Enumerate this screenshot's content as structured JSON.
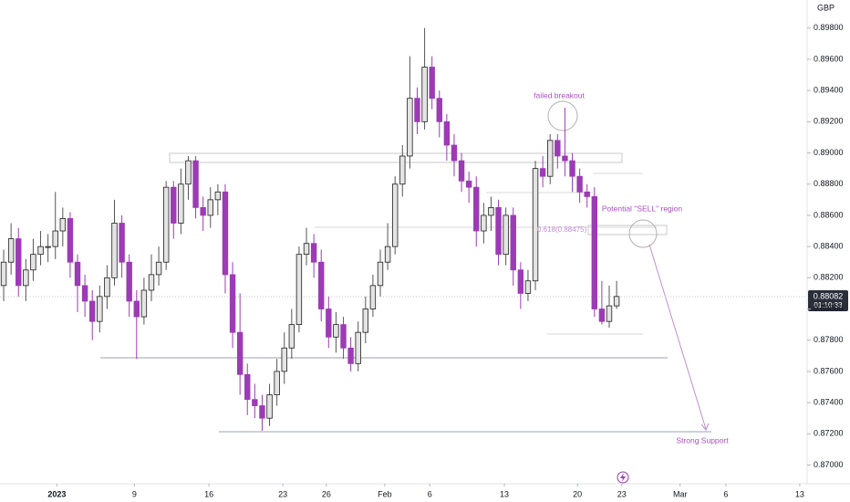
{
  "chart_data": {
    "type": "candlestick",
    "currency": "GBP",
    "last_price_label": "0.88082",
    "countdown": "01:10:33",
    "up_color": "#e4e4e4",
    "down_color": "#9c3bb5",
    "outline_color": "#1e1e1e",
    "open": [
      0.8815,
      0.883,
      0.8845,
      0.8815,
      0.8825,
      0.8835,
      0.884,
      0.884,
      0.885,
      0.8858,
      0.883,
      0.8815,
      0.8805,
      0.8792,
      0.8808,
      0.882,
      0.8855,
      0.883,
      0.8805,
      0.8795,
      0.8812,
      0.8822,
      0.883,
      0.8878,
      0.8855,
      0.888,
      0.8895,
      0.8865,
      0.886,
      0.887,
      0.8875,
      0.8822,
      0.8785,
      0.8758,
      0.8742,
      0.8738,
      0.873,
      0.8745,
      0.876,
      0.8775,
      0.879,
      0.8835,
      0.8842,
      0.883,
      0.88,
      0.8782,
      0.879,
      0.8775,
      0.8765,
      0.8785,
      0.88,
      0.8815,
      0.883,
      0.884,
      0.888,
      0.8898,
      0.8935,
      0.892,
      0.8955,
      0.8935,
      0.892,
      0.8905,
      0.8895,
      0.8882,
      0.8878,
      0.885,
      0.886,
      0.8865,
      0.8835,
      0.886,
      0.8825,
      0.881,
      0.8818,
      0.889,
      0.8885,
      0.8908,
      0.8898,
      0.8895,
      0.8885,
      0.8875,
      0.8872,
      0.88,
      0.8792,
      0.8802
    ],
    "high": [
      0.8838,
      0.8855,
      0.8852,
      0.8832,
      0.8845,
      0.885,
      0.8848,
      0.8875,
      0.8865,
      0.8862,
      0.8835,
      0.8822,
      0.8812,
      0.8815,
      0.8828,
      0.887,
      0.886,
      0.8835,
      0.8812,
      0.882,
      0.8835,
      0.884,
      0.8882,
      0.8882,
      0.889,
      0.8898,
      0.8898,
      0.8872,
      0.8878,
      0.888,
      0.888,
      0.883,
      0.881,
      0.8765,
      0.8752,
      0.8745,
      0.8752,
      0.8768,
      0.8785,
      0.88,
      0.884,
      0.8852,
      0.8848,
      0.8838,
      0.8808,
      0.8798,
      0.8795,
      0.8782,
      0.8792,
      0.8808,
      0.8822,
      0.8838,
      0.8855,
      0.8885,
      0.8905,
      0.8962,
      0.8942,
      0.898,
      0.8962,
      0.894,
      0.8925,
      0.8912,
      0.89,
      0.8888,
      0.8885,
      0.8868,
      0.8872,
      0.887,
      0.8865,
      0.8865,
      0.883,
      0.8825,
      0.8895,
      0.8898,
      0.8912,
      0.8912,
      0.8929,
      0.89,
      0.889,
      0.888,
      0.8878,
      0.8818,
      0.8815,
      0.8818
    ],
    "low": [
      0.8805,
      0.8822,
      0.8808,
      0.8805,
      0.8818,
      0.8828,
      0.883,
      0.8832,
      0.884,
      0.882,
      0.8798,
      0.8795,
      0.878,
      0.8785,
      0.88,
      0.8815,
      0.882,
      0.8795,
      0.8768,
      0.879,
      0.8805,
      0.8815,
      0.8825,
      0.8845,
      0.8848,
      0.887,
      0.8858,
      0.885,
      0.8852,
      0.886,
      0.881,
      0.8775,
      0.8745,
      0.8732,
      0.873,
      0.8722,
      0.8725,
      0.8738,
      0.8752,
      0.8768,
      0.8785,
      0.8828,
      0.882,
      0.8792,
      0.8775,
      0.8772,
      0.8768,
      0.876,
      0.876,
      0.8778,
      0.8795,
      0.8808,
      0.8825,
      0.8835,
      0.8872,
      0.889,
      0.8912,
      0.8915,
      0.8928,
      0.891,
      0.8895,
      0.8885,
      0.8875,
      0.8868,
      0.884,
      0.8842,
      0.885,
      0.8828,
      0.8828,
      0.8815,
      0.88,
      0.8805,
      0.8812,
      0.8878,
      0.888,
      0.889,
      0.8885,
      0.8875,
      0.8868,
      0.8865,
      0.8795,
      0.879,
      0.8788,
      0.88
    ],
    "close": [
      0.883,
      0.8845,
      0.8815,
      0.8825,
      0.8835,
      0.884,
      0.884,
      0.885,
      0.8858,
      0.883,
      0.8815,
      0.8805,
      0.8792,
      0.8808,
      0.882,
      0.8855,
      0.883,
      0.8805,
      0.8795,
      0.8812,
      0.8822,
      0.883,
      0.8878,
      0.8855,
      0.888,
      0.8895,
      0.8865,
      0.886,
      0.887,
      0.8875,
      0.8822,
      0.8785,
      0.8758,
      0.8742,
      0.8738,
      0.873,
      0.8745,
      0.876,
      0.8775,
      0.879,
      0.8835,
      0.8842,
      0.883,
      0.88,
      0.8782,
      0.879,
      0.8775,
      0.8765,
      0.8785,
      0.88,
      0.8815,
      0.883,
      0.884,
      0.888,
      0.8898,
      0.8935,
      0.892,
      0.8955,
      0.8935,
      0.892,
      0.8905,
      0.8895,
      0.8882,
      0.8878,
      0.885,
      0.886,
      0.8865,
      0.8835,
      0.886,
      0.8825,
      0.881,
      0.8818,
      0.889,
      0.8885,
      0.8908,
      0.8898,
      0.8895,
      0.8885,
      0.8875,
      0.8872,
      0.88,
      0.8792,
      0.8802,
      0.8808
    ],
    "xlim": [
      -0.5,
      108.8
    ],
    "xticks": [
      {
        "value": 7.2,
        "label": "2023"
      },
      {
        "value": 17.7,
        "label": "9"
      },
      {
        "value": 27.8,
        "label": "16"
      },
      {
        "value": 37.8,
        "label": "23"
      },
      {
        "value": 43.7,
        "label": "26"
      },
      {
        "value": 51.6,
        "label": "Feb"
      },
      {
        "value": 57.7,
        "label": "6"
      },
      {
        "value": 67.8,
        "label": "13"
      },
      {
        "value": 77.7,
        "label": "20"
      },
      {
        "value": 83.7,
        "label": "23"
      },
      {
        "value": 91.6,
        "label": "Mar"
      },
      {
        "value": 97.8,
        "label": "6"
      },
      {
        "value": 107.8,
        "label": "13"
      }
    ],
    "ylim": [
      0.8688,
      0.8998
    ],
    "yticks": [
      {
        "value": 0.87,
        "label": "0.87000"
      },
      {
        "value": 0.872,
        "label": "0.87200"
      },
      {
        "value": 0.874,
        "label": "0.87400"
      },
      {
        "value": 0.876,
        "label": "0.87600"
      },
      {
        "value": 0.878,
        "label": "0.87800"
      },
      {
        "value": 0.88,
        "label": "0.88000"
      },
      {
        "value": 0.882,
        "label": "0.88200"
      },
      {
        "value": 0.884,
        "label": "0.88400"
      },
      {
        "value": 0.886,
        "label": "0.88600"
      },
      {
        "value": 0.888,
        "label": "0.88800"
      },
      {
        "value": 0.89,
        "label": "0.89000"
      },
      {
        "value": 0.892,
        "label": "0.89200"
      },
      {
        "value": 0.894,
        "label": "0.89400"
      },
      {
        "value": 0.896,
        "label": "0.89600"
      },
      {
        "value": 0.898,
        "label": "0.89800"
      }
    ],
    "annotations": [
      "failed breakout",
      "Potential \"SELL\" region",
      "Strong Support",
      "0.618(0.88475)"
    ]
  }
}
